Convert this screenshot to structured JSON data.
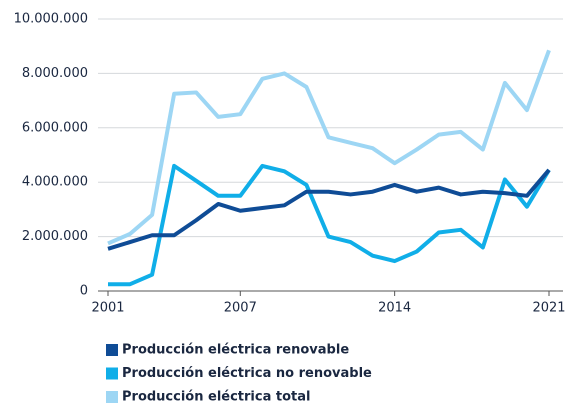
{
  "chart_data": {
    "type": "line",
    "x": [
      2001,
      2002,
      2003,
      2004,
      2005,
      2006,
      2007,
      2008,
      2009,
      2010,
      2011,
      2012,
      2013,
      2014,
      2015,
      2016,
      2017,
      2018,
      2019,
      2020,
      2021
    ],
    "xlim": [
      2001,
      2021
    ],
    "xticks": [
      2001,
      2007,
      2014,
      2021
    ],
    "ylim": [
      0,
      10000000
    ],
    "yticks": [
      0,
      {
        "value": 2000000,
        "label": "2.000.000"
      },
      {
        "value": 4000000,
        "label": "4.000.000"
      },
      {
        "value": 6000000,
        "label": "6.000.000"
      },
      {
        "value": 8000000,
        "label": "8.000.000"
      },
      {
        "value": 10000000,
        "label": "10.000.000"
      }
    ],
    "grid": true,
    "series": [
      {
        "name": "Producción eléctrica renovable",
        "color": "#0f4c96",
        "values": [
          1550000,
          1800000,
          2050000,
          2050000,
          2600000,
          3200000,
          2950000,
          3050000,
          3150000,
          3650000,
          3650000,
          3550000,
          3650000,
          3900000,
          3650000,
          3800000,
          3550000,
          3650000,
          3600000,
          3500000,
          4450000
        ]
      },
      {
        "name": "Producción eléctrica no renovable",
        "color": "#10aee8",
        "values": [
          250000,
          250000,
          600000,
          4600000,
          4050000,
          3500000,
          3500000,
          4600000,
          4400000,
          3900000,
          2000000,
          1800000,
          1300000,
          1100000,
          1450000,
          2150000,
          2250000,
          1600000,
          4100000,
          3100000,
          4450000
        ]
      },
      {
        "name": "Producción eléctrica total",
        "color": "#9dd6f4",
        "values": [
          1750000,
          2100000,
          2800000,
          7250000,
          7300000,
          6400000,
          6500000,
          7800000,
          8000000,
          7500000,
          5650000,
          5450000,
          5250000,
          4700000,
          5200000,
          5750000,
          5850000,
          5200000,
          7650000,
          6650000,
          8850000
        ]
      }
    ]
  }
}
